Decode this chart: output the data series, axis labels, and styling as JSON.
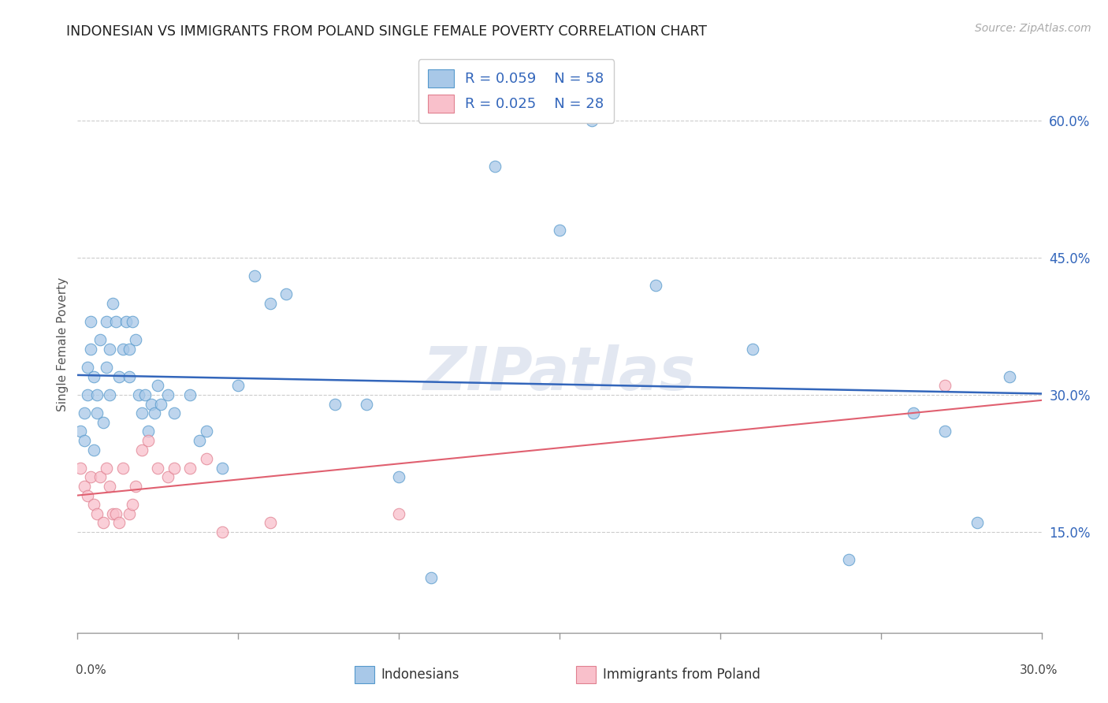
{
  "title": "INDONESIAN VS IMMIGRANTS FROM POLAND SINGLE FEMALE POVERTY CORRELATION CHART",
  "source": "Source: ZipAtlas.com",
  "ylabel": "Single Female Poverty",
  "y_ticks": [
    0.15,
    0.3,
    0.45,
    0.6
  ],
  "y_tick_labels": [
    "15.0%",
    "30.0%",
    "45.0%",
    "60.0%"
  ],
  "x_ticks": [
    0.0,
    0.05,
    0.1,
    0.15,
    0.2,
    0.25,
    0.3
  ],
  "xlim": [
    0.0,
    0.3
  ],
  "ylim": [
    0.04,
    0.67
  ],
  "legend1_label": "Indonesians",
  "legend2_label": "Immigrants from Poland",
  "R1": 0.059,
  "N1": 58,
  "R2": 0.025,
  "N2": 28,
  "blue_color": "#a8c8e8",
  "pink_color": "#f9c0cb",
  "blue_edge_color": "#5599cc",
  "pink_edge_color": "#e08090",
  "blue_line_color": "#3366bb",
  "pink_line_color": "#e06070",
  "bg_color": "#ffffff",
  "grid_color": "#cccccc",
  "watermark": "ZIPatlas",
  "indonesian_x": [
    0.001,
    0.002,
    0.002,
    0.003,
    0.003,
    0.004,
    0.004,
    0.005,
    0.005,
    0.006,
    0.006,
    0.007,
    0.008,
    0.009,
    0.009,
    0.01,
    0.01,
    0.011,
    0.012,
    0.013,
    0.014,
    0.015,
    0.016,
    0.016,
    0.017,
    0.018,
    0.019,
    0.02,
    0.021,
    0.022,
    0.023,
    0.024,
    0.025,
    0.026,
    0.028,
    0.03,
    0.035,
    0.038,
    0.04,
    0.045,
    0.05,
    0.055,
    0.06,
    0.065,
    0.08,
    0.09,
    0.1,
    0.11,
    0.13,
    0.15,
    0.16,
    0.18,
    0.21,
    0.24,
    0.26,
    0.27,
    0.28,
    0.29
  ],
  "indonesian_y": [
    0.26,
    0.25,
    0.28,
    0.3,
    0.33,
    0.35,
    0.38,
    0.32,
    0.24,
    0.28,
    0.3,
    0.36,
    0.27,
    0.38,
    0.33,
    0.35,
    0.3,
    0.4,
    0.38,
    0.32,
    0.35,
    0.38,
    0.35,
    0.32,
    0.38,
    0.36,
    0.3,
    0.28,
    0.3,
    0.26,
    0.29,
    0.28,
    0.31,
    0.29,
    0.3,
    0.28,
    0.3,
    0.25,
    0.26,
    0.22,
    0.31,
    0.43,
    0.4,
    0.41,
    0.29,
    0.29,
    0.21,
    0.1,
    0.55,
    0.48,
    0.6,
    0.42,
    0.35,
    0.12,
    0.28,
    0.26,
    0.16,
    0.32
  ],
  "poland_x": [
    0.001,
    0.002,
    0.003,
    0.004,
    0.005,
    0.006,
    0.007,
    0.008,
    0.009,
    0.01,
    0.011,
    0.012,
    0.013,
    0.014,
    0.016,
    0.017,
    0.018,
    0.02,
    0.022,
    0.025,
    0.028,
    0.03,
    0.035,
    0.04,
    0.045,
    0.06,
    0.1,
    0.27
  ],
  "poland_y": [
    0.22,
    0.2,
    0.19,
    0.21,
    0.18,
    0.17,
    0.21,
    0.16,
    0.22,
    0.2,
    0.17,
    0.17,
    0.16,
    0.22,
    0.17,
    0.18,
    0.2,
    0.24,
    0.25,
    0.22,
    0.21,
    0.22,
    0.22,
    0.23,
    0.15,
    0.16,
    0.17,
    0.31
  ]
}
